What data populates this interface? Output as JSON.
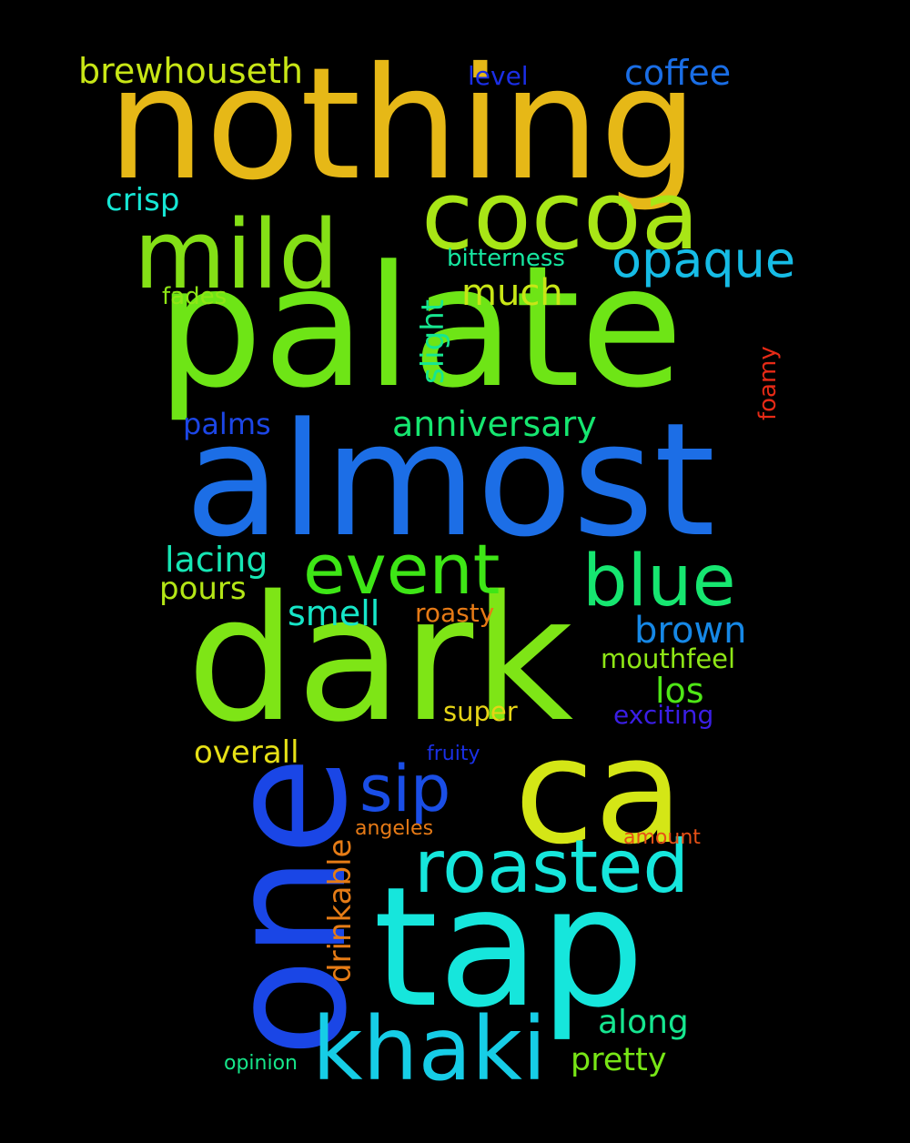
{
  "words": [
    {
      "text": "nothing",
      "color": "#e6b817",
      "rotated": false
    },
    {
      "text": "palate",
      "color": "#6ee516",
      "rotated": false
    },
    {
      "text": "almost",
      "color": "#1c6ee6",
      "rotated": false
    },
    {
      "text": "dark",
      "color": "#7ee516",
      "rotated": false
    },
    {
      "text": "tap",
      "color": "#16e6dc",
      "rotated": false
    },
    {
      "text": "one",
      "color": "#1a46e6",
      "rotated": true
    },
    {
      "text": "ca",
      "color": "#d4e616",
      "rotated": false
    },
    {
      "text": "cocoa",
      "color": "#a8e616",
      "rotated": false
    },
    {
      "text": "mild",
      "color": "#84e016",
      "rotated": false
    },
    {
      "text": "khaki",
      "color": "#16cde6",
      "rotated": false
    },
    {
      "text": "roasted",
      "color": "#16e6dc",
      "rotated": false
    },
    {
      "text": "event",
      "color": "#3ee616",
      "rotated": false
    },
    {
      "text": "blue",
      "color": "#16e670",
      "rotated": false
    },
    {
      "text": "sip",
      "color": "#1a4ee6",
      "rotated": false
    },
    {
      "text": "opaque",
      "color": "#16bce6",
      "rotated": false
    },
    {
      "text": "anniversary",
      "color": "#16e670",
      "rotated": false
    },
    {
      "text": "brown",
      "color": "#1688e6",
      "rotated": false
    },
    {
      "text": "brewhouseth",
      "color": "#c8e616",
      "rotated": false
    },
    {
      "text": "coffee",
      "color": "#1a6ee6",
      "rotated": false
    },
    {
      "text": "lacing",
      "color": "#16e6b4",
      "rotated": false
    },
    {
      "text": "much",
      "color": "#c8e616",
      "rotated": false
    },
    {
      "text": "smell",
      "color": "#16e6c8",
      "rotated": false
    },
    {
      "text": "slight",
      "color": "#16e690",
      "rotated": true
    },
    {
      "text": "drinkable",
      "color": "#e67c16",
      "rotated": true
    },
    {
      "text": "los",
      "color": "#4ee616",
      "rotated": false
    },
    {
      "text": "overall",
      "color": "#e6e016",
      "rotated": false
    },
    {
      "text": "along",
      "color": "#16e690",
      "rotated": false
    },
    {
      "text": "pretty",
      "color": "#78e616",
      "rotated": false
    },
    {
      "text": "palms",
      "color": "#1c46e6",
      "rotated": false
    },
    {
      "text": "crisp",
      "color": "#16e6d4",
      "rotated": false
    },
    {
      "text": "pours",
      "color": "#b4e616",
      "rotated": false
    },
    {
      "text": "mouthfeel",
      "color": "#8ee616",
      "rotated": false
    },
    {
      "text": "super",
      "color": "#e6d416",
      "rotated": false
    },
    {
      "text": "exciting",
      "color": "#3a1ee6",
      "rotated": false
    },
    {
      "text": "bitterness",
      "color": "#16e6a0",
      "rotated": false
    },
    {
      "text": "roasty",
      "color": "#e67a16",
      "rotated": false
    },
    {
      "text": "fades",
      "color": "#8ee616",
      "rotated": false
    },
    {
      "text": "level",
      "color": "#1a2ee6",
      "rotated": false
    },
    {
      "text": "foamy",
      "color": "#e62a16",
      "rotated": true
    },
    {
      "text": "fruity",
      "color": "#1a30e6",
      "rotated": false
    },
    {
      "text": "angeles",
      "color": "#e67a16",
      "rotated": false
    },
    {
      "text": "amount",
      "color": "#e65016",
      "rotated": false
    },
    {
      "text": "opinion",
      "color": "#16e68a",
      "rotated": false
    }
  ]
}
